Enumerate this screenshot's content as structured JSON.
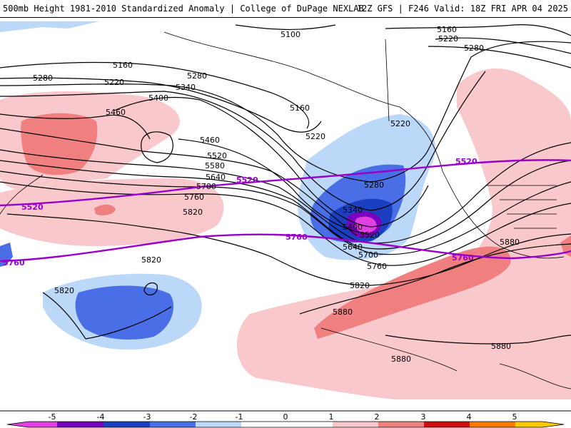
{
  "header": {
    "title": "500mb Height 1981-2010 Standardized Anomaly | College of DuPage NEXLAB",
    "run_info": "12Z GFS | F246 Valid: 18Z FRI APR 04 2025"
  },
  "contours": {
    "labels": [
      "5100",
      "5160",
      "5220",
      "5280",
      "5340",
      "5400",
      "5460",
      "5520",
      "5580",
      "5640",
      "5700",
      "5760",
      "5820",
      "5880"
    ],
    "climo_labels": [
      "5520",
      "5760"
    ]
  },
  "legend": {
    "ticks": [
      "-5",
      "-4",
      "-3",
      "-2",
      "-1",
      "0",
      "1",
      "2",
      "3",
      "4",
      "5"
    ],
    "colors": {
      "m5": "#e040e0",
      "m4": "#7a00c0",
      "m3": "#1a3fc0",
      "m2": "#4a6ee6",
      "m1": "#bcd8f8",
      "zero": "#ffffff",
      "p1": "#f8c8cc",
      "p2": "#f08080",
      "p3": "#cc1010",
      "p4": "#ff7a00",
      "p5": "#ffc800"
    }
  }
}
